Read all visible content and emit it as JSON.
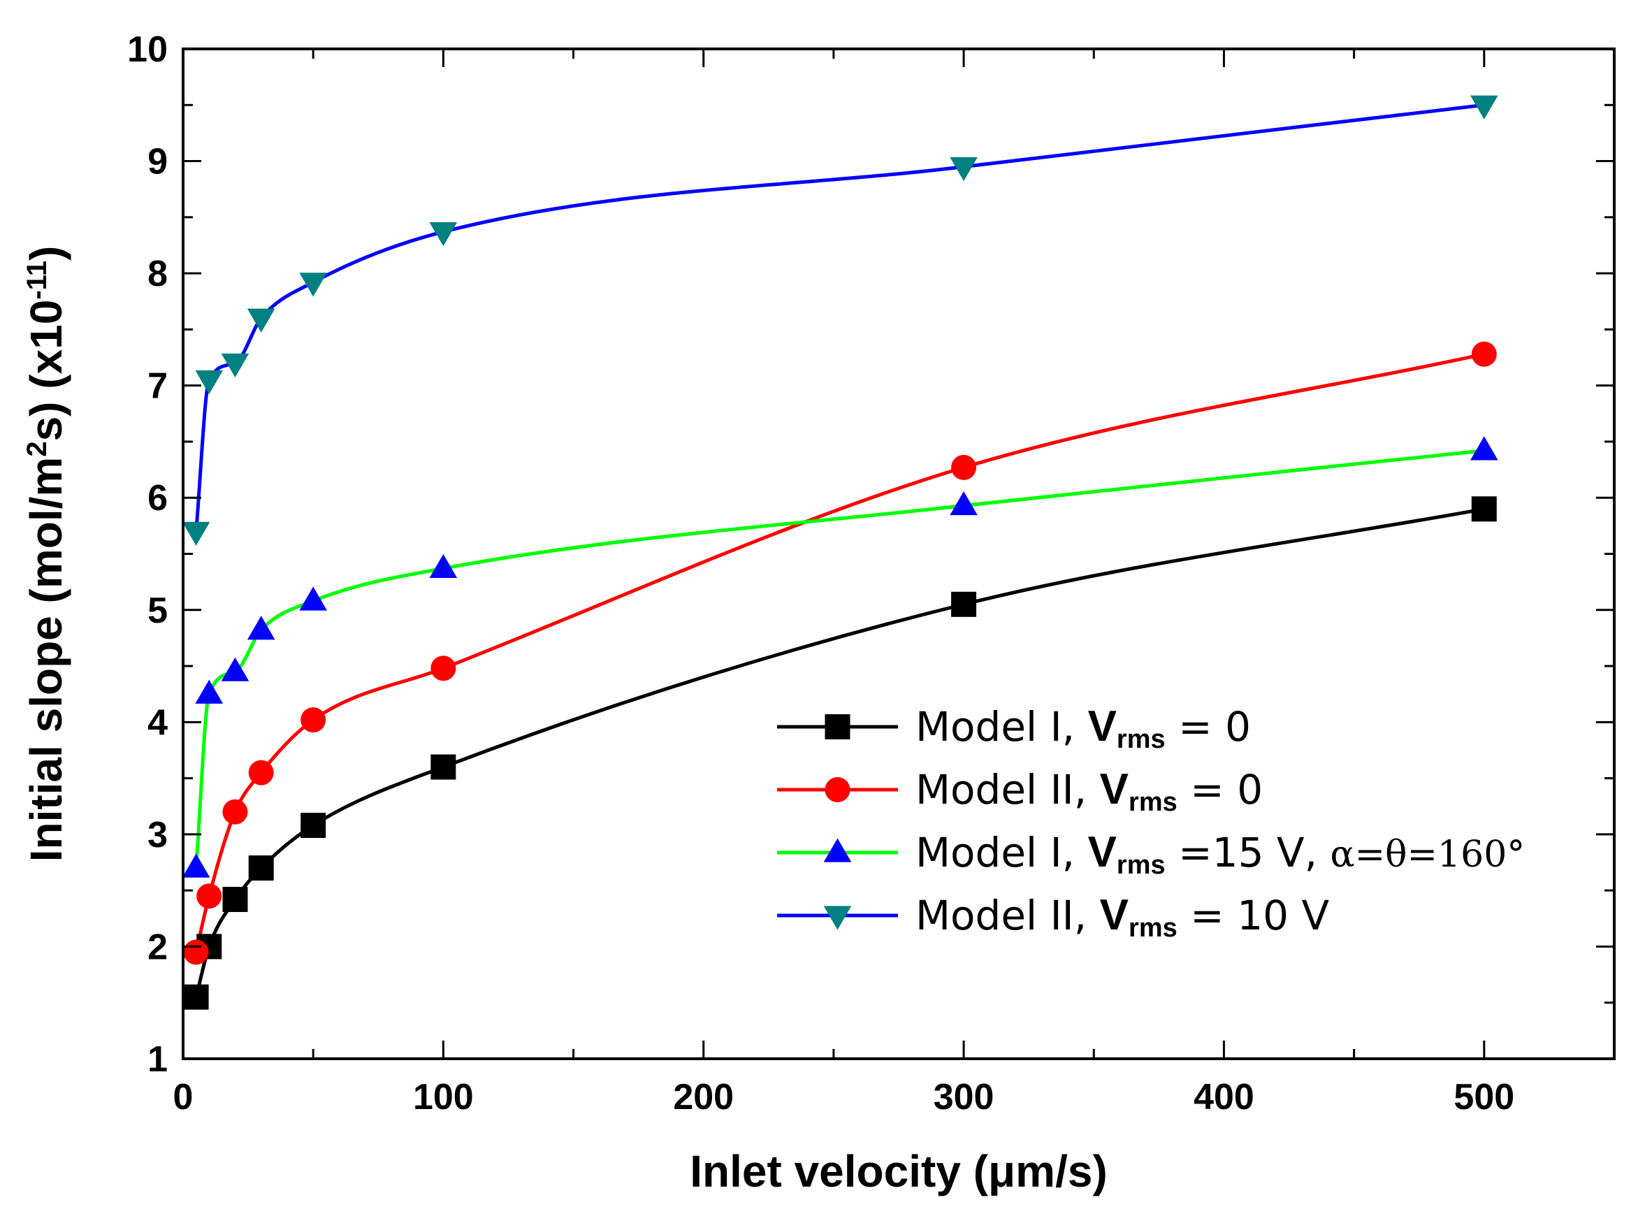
{
  "chart_data": {
    "type": "line",
    "title": "",
    "xlabel": "Inlet velocity (μm/s)",
    "ylabel_parts": {
      "main": "Initial slope (mol/m",
      "sup1": "2",
      "mid": "s) (x10",
      "sup2": "-11",
      "end": ")"
    },
    "xlim": [
      0,
      550
    ],
    "ylim": [
      1,
      10
    ],
    "xticks": [
      0,
      100,
      200,
      300,
      400,
      500
    ],
    "xtick_labels": [
      "0",
      "100",
      "200",
      "300",
      "400",
      "500"
    ],
    "yticks": [
      1,
      2,
      3,
      4,
      5,
      6,
      7,
      8,
      9,
      10
    ],
    "ytick_labels": [
      "1",
      "2",
      "3",
      "4",
      "5",
      "6",
      "7",
      "8",
      "9",
      "10"
    ],
    "grid": false,
    "legend_position": "lower-right",
    "series": [
      {
        "name": "Model I, Vrms = 0",
        "legend": {
          "pre": "Model I,  ",
          "bold": "V",
          "sub": "rms",
          "post": " = 0",
          "extra": ""
        },
        "line_color": "#000000",
        "marker": "square",
        "marker_color": "#000000",
        "x": [
          5,
          10,
          20,
          30,
          50,
          100,
          300,
          500
        ],
        "y": [
          1.55,
          2.0,
          2.42,
          2.7,
          3.08,
          3.6,
          5.05,
          5.9
        ]
      },
      {
        "name": "Model II, Vrms = 0",
        "legend": {
          "pre": "Model II,  ",
          "bold": "V",
          "sub": "rms",
          "post": " = 0",
          "extra": ""
        },
        "line_color": "#ff0000",
        "marker": "circle",
        "marker_color": "#ff0000",
        "x": [
          5,
          10,
          20,
          30,
          50,
          100,
          300,
          500
        ],
        "y": [
          1.95,
          2.45,
          3.2,
          3.55,
          4.02,
          4.48,
          6.27,
          7.28
        ]
      },
      {
        "name": "Model I, Vrms =15 V, α=θ=160°",
        "legend": {
          "pre": "Model I,  ",
          "bold": "V",
          "sub": "rms",
          "post": " =15 V, ",
          "extra": "α=θ=160°"
        },
        "line_color": "#00ff00",
        "marker": "triangle-up",
        "marker_color": "#0000ff",
        "x": [
          5,
          10,
          20,
          30,
          50,
          100,
          300,
          500
        ],
        "y": [
          2.7,
          4.25,
          4.45,
          4.82,
          5.08,
          5.37,
          5.93,
          6.42
        ]
      },
      {
        "name": "Model II, Vrms = 10 V",
        "legend": {
          "pre": "Model II,  ",
          "bold": "V",
          "sub": "rms",
          "post": " = 10 V",
          "extra": ""
        },
        "line_color": "#0000ff",
        "marker": "triangle-down",
        "marker_color": "#008080",
        "x": [
          5,
          10,
          20,
          30,
          50,
          100,
          300,
          500
        ],
        "y": [
          5.7,
          7.05,
          7.2,
          7.6,
          7.92,
          8.37,
          8.95,
          9.5
        ]
      }
    ]
  }
}
